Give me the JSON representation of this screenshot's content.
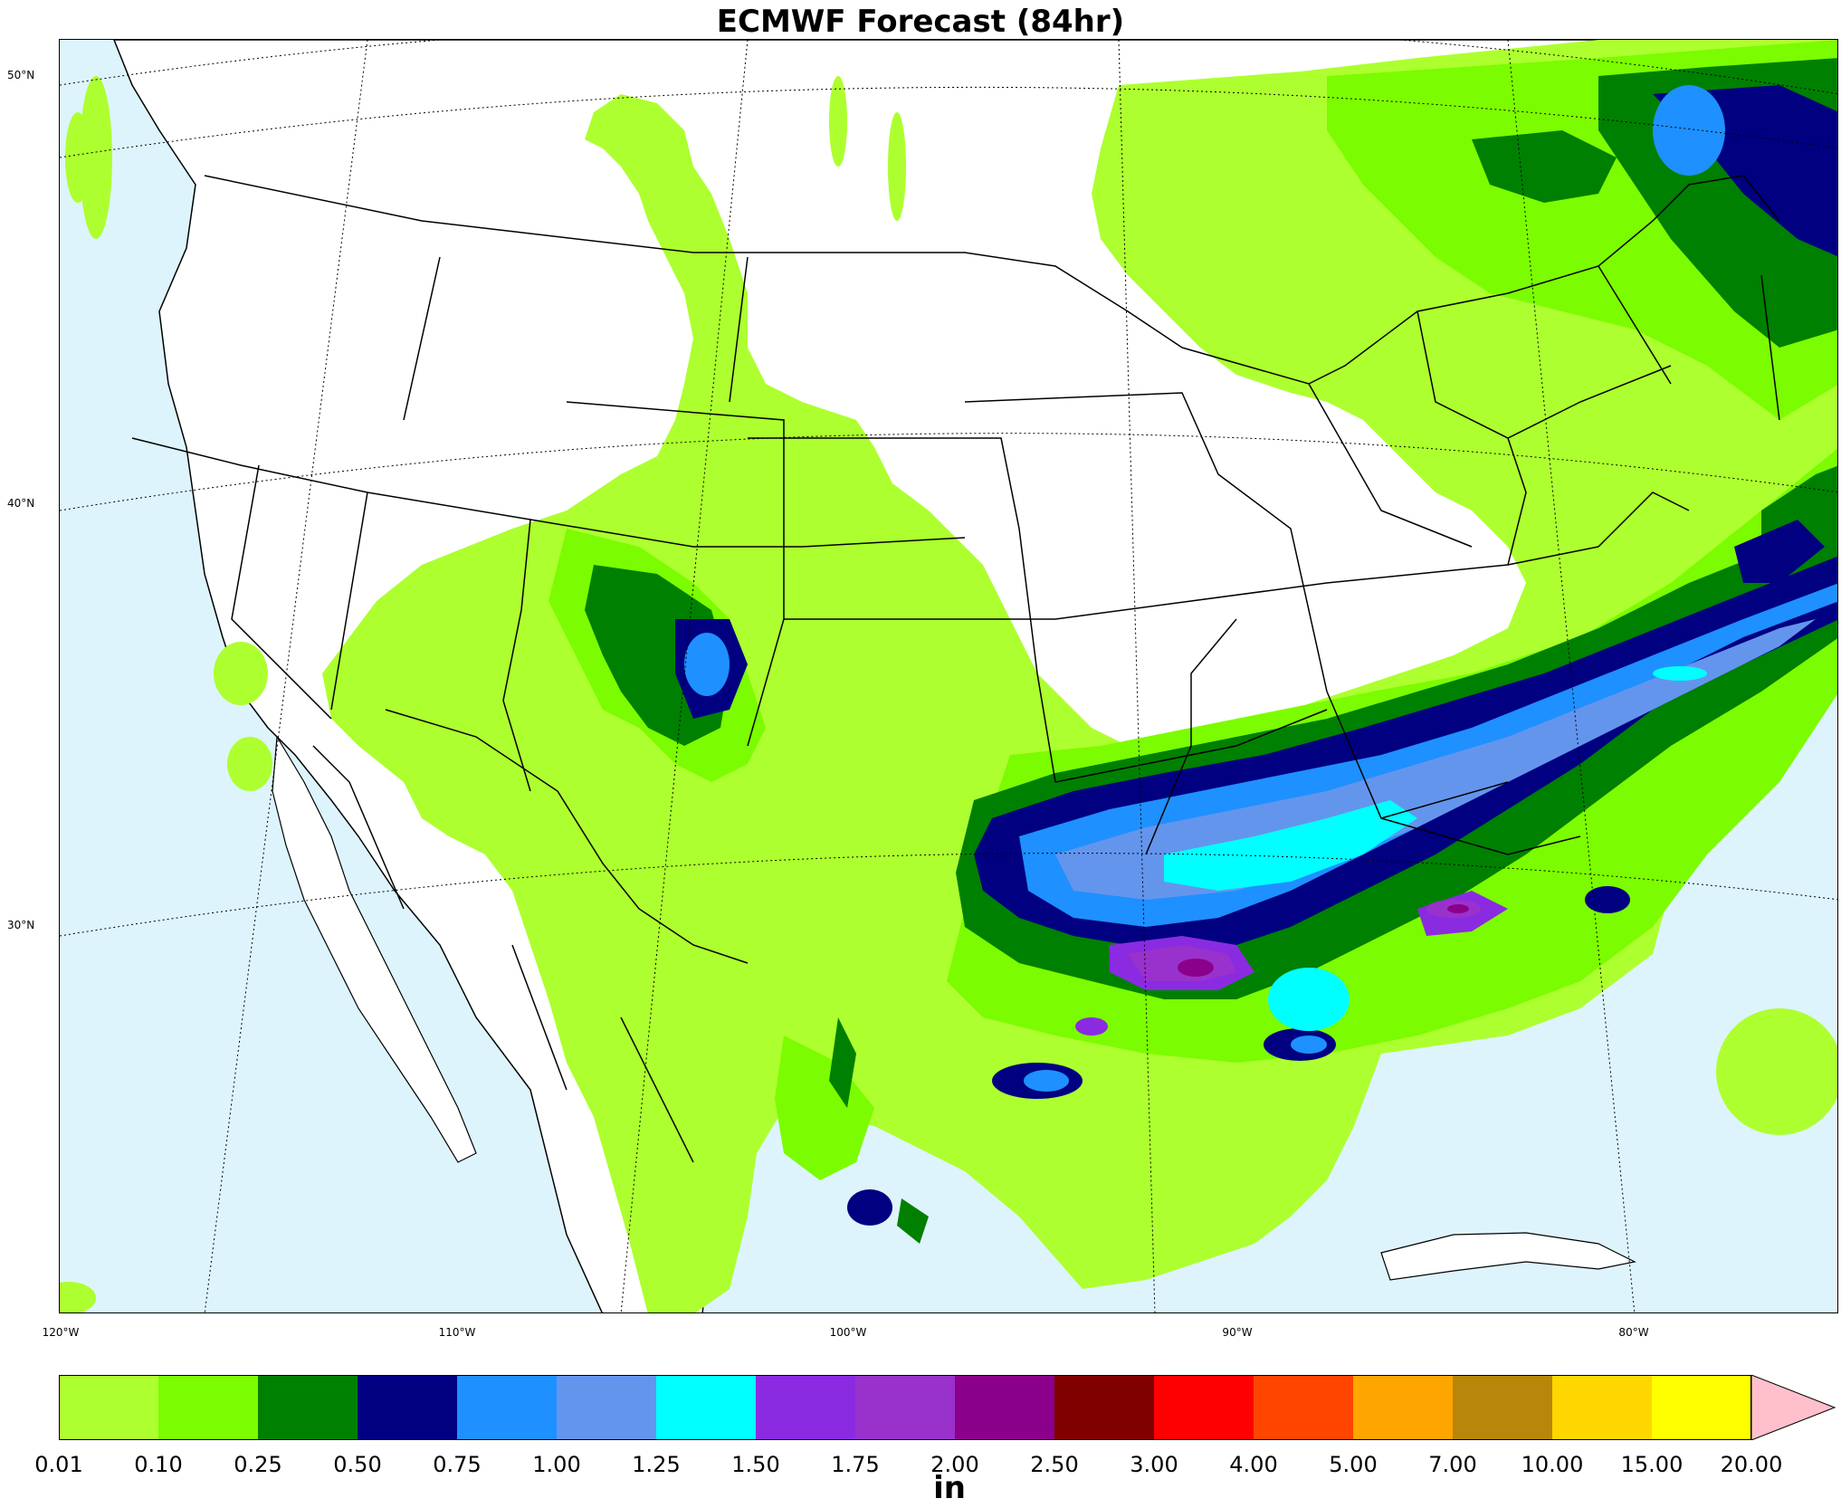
{
  "title": "ECMWF Forecast (84hr)",
  "map": {
    "projection": "lambert-conformal",
    "region": "Continental United States",
    "land_color": "#ffffff",
    "ocean_color": "#ddf4fc",
    "lat_labels": [
      {
        "label": "50°N"
      },
      {
        "label": "40°N"
      },
      {
        "label": "30°N"
      }
    ],
    "lon_labels": [
      {
        "label": "120°W"
      },
      {
        "label": "110°W"
      },
      {
        "label": "100°W"
      },
      {
        "label": "90°W"
      },
      {
        "label": "80°W"
      }
    ],
    "precip_features": [
      {
        "region": "Southwest / Four Corners",
        "max_in": 1.0
      },
      {
        "region": "Northeast / Great Lakes / Quebec",
        "max_in": 1.0
      },
      {
        "region": "Gulf Coast band (Texas to Carolinas)",
        "max_in": 2.5
      },
      {
        "region": "Louisiana maximum",
        "max_in": 2.5
      }
    ]
  },
  "colorbar": {
    "unit": "in",
    "colors": [
      "#adff2f",
      "#7cfc00",
      "#008000",
      "#000080",
      "#1e90ff",
      "#6495ed",
      "#00ffff",
      "#8a2be2",
      "#9932cc",
      "#8b008b",
      "#800000",
      "#ff0000",
      "#ff4500",
      "#ffa500",
      "#b8860b",
      "#ffd700",
      "#ffff00"
    ],
    "extend_color": "#ffc0cb",
    "ticks": [
      "0.01",
      "0.10",
      "0.25",
      "0.50",
      "0.75",
      "1.00",
      "1.25",
      "1.50",
      "1.75",
      "2.00",
      "2.50",
      "3.00",
      "4.00",
      "5.00",
      "7.00",
      "10.00",
      "15.00",
      "20.00"
    ]
  }
}
